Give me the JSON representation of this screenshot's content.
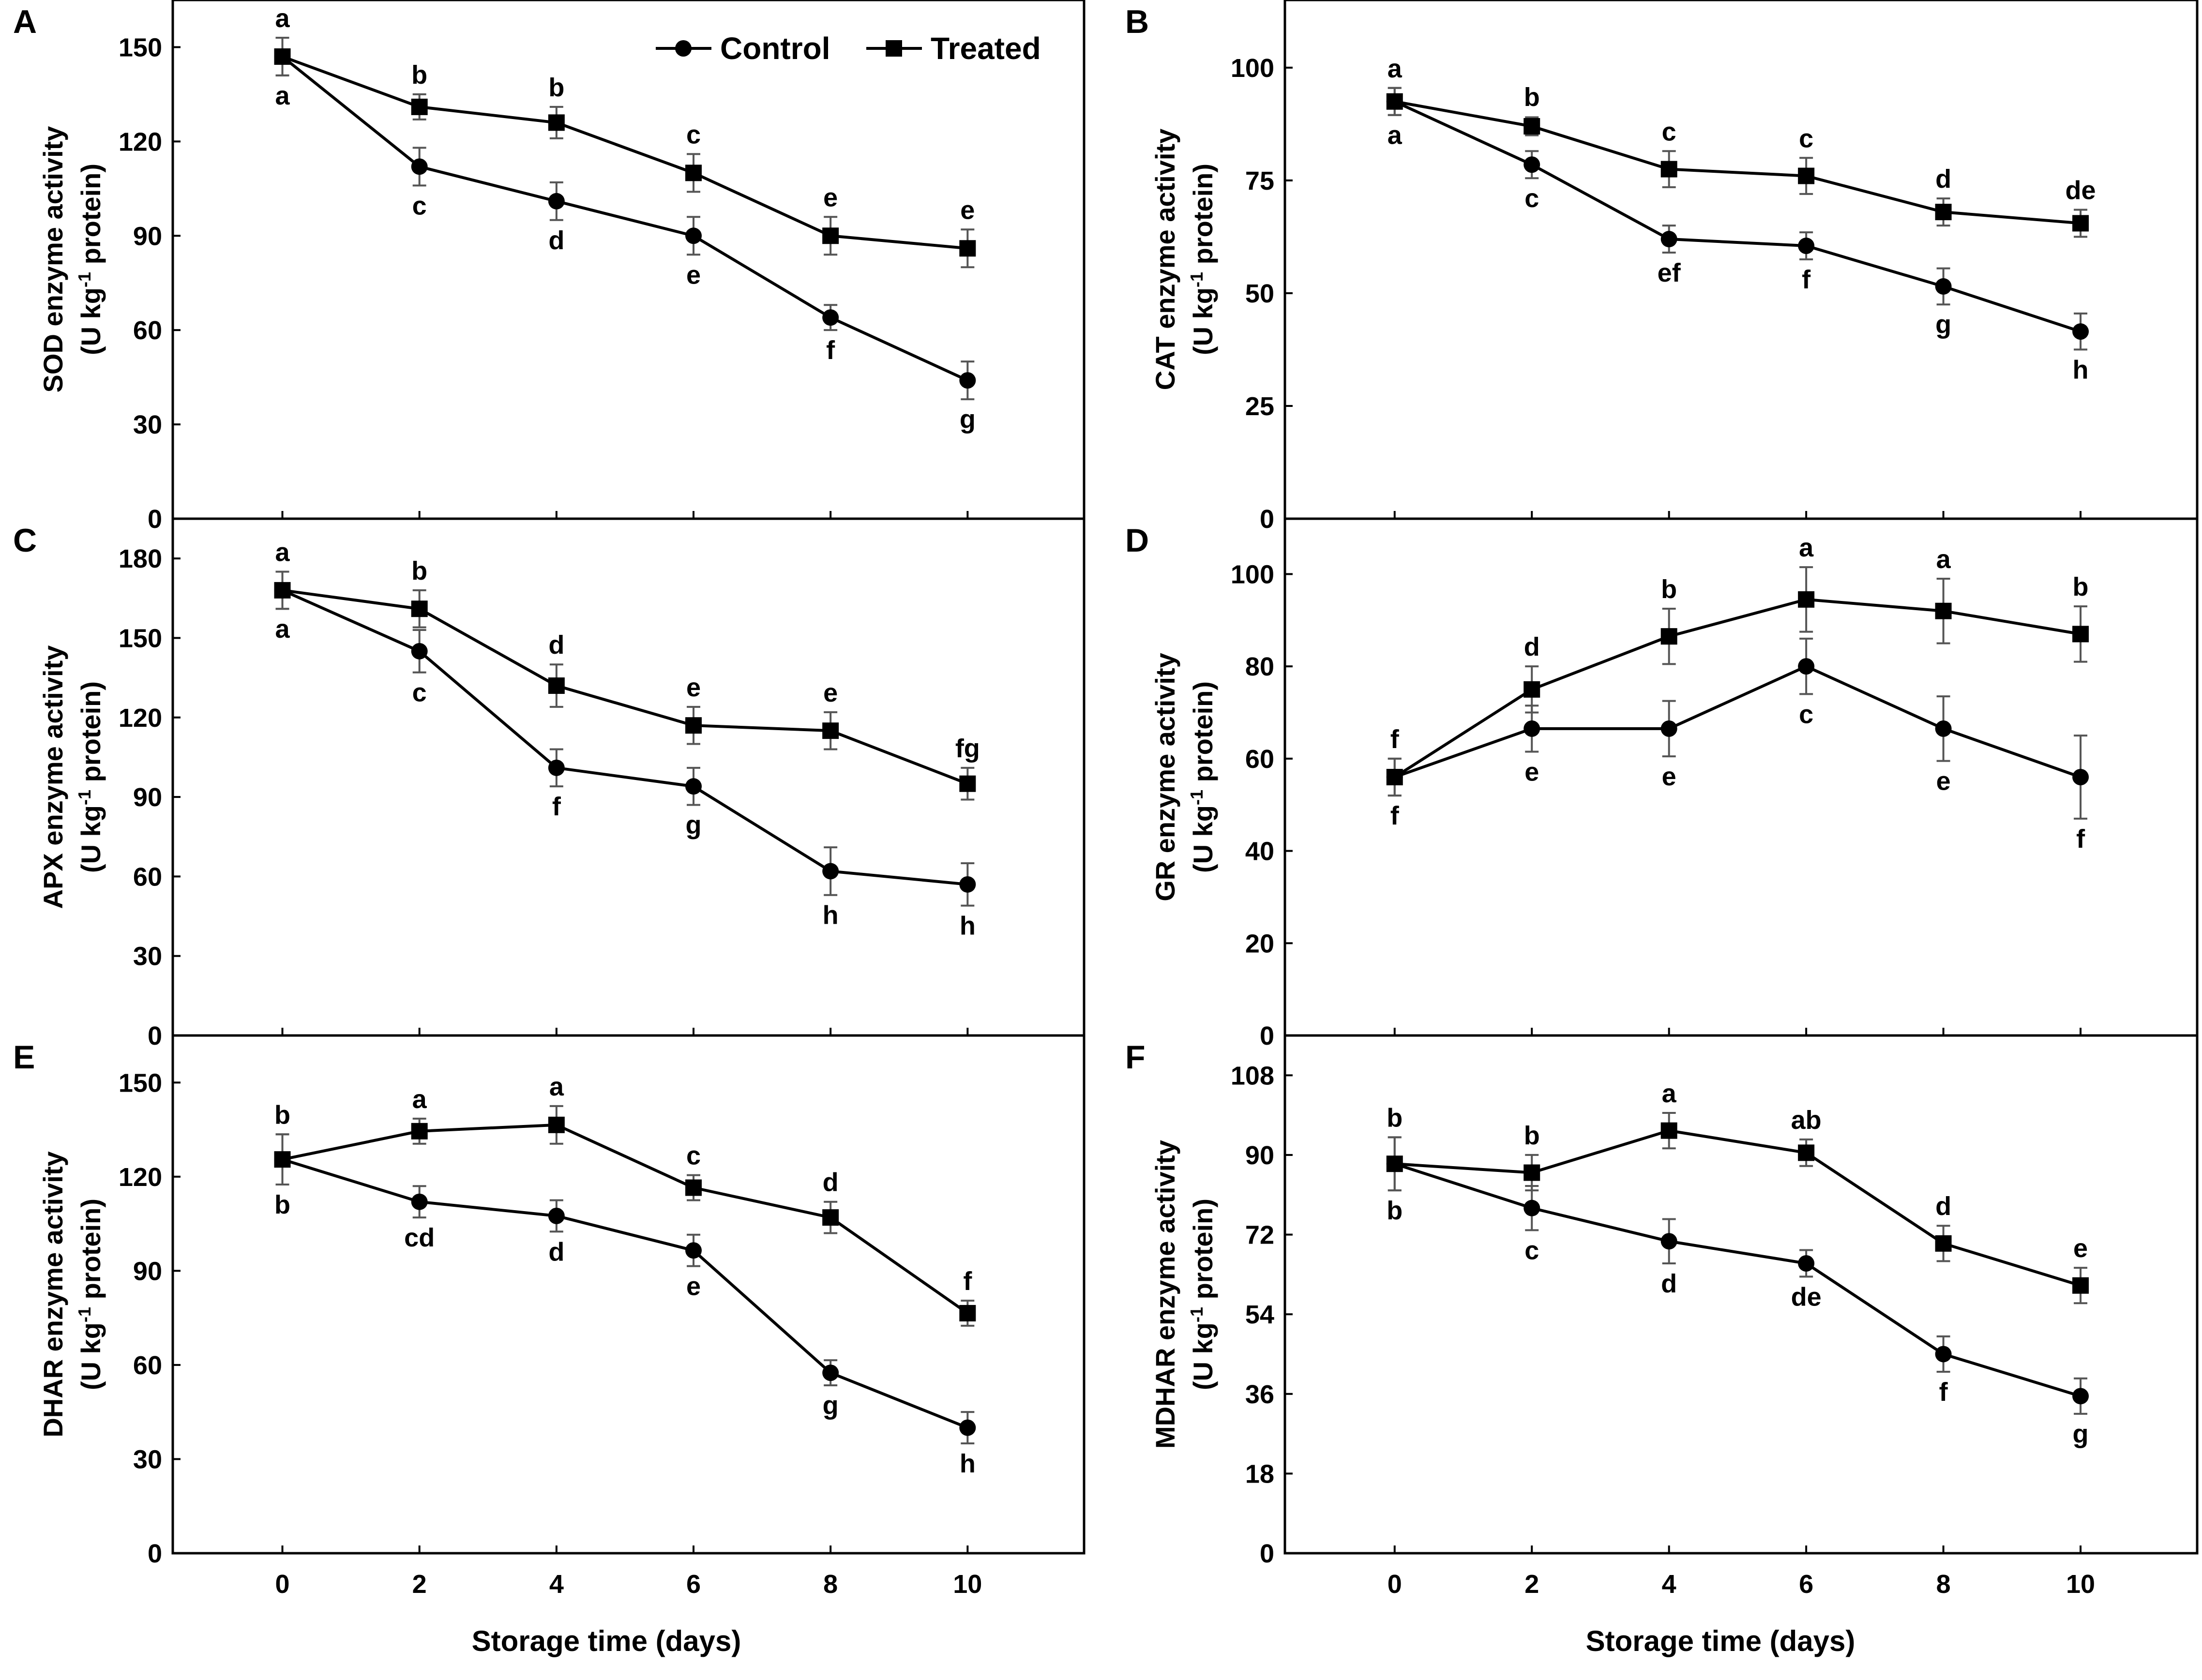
{
  "figure": {
    "x_axis_title": "Storage time (days)",
    "legend": [
      {
        "label": "Control",
        "marker": "circle"
      },
      {
        "label": "Treated",
        "marker": "square"
      }
    ]
  },
  "chart_data": [
    {
      "panel": "A",
      "type": "line",
      "ylabel_line1": "SOD enzyme activity",
      "ylabel_line2_pre": "(U kg",
      "ylabel_sup": "-1",
      "ylabel_line2_post": " protein)",
      "ylim": [
        0,
        165
      ],
      "yticks": [
        0,
        30,
        60,
        90,
        120,
        150
      ],
      "x": [
        0,
        2,
        4,
        6,
        8,
        10
      ],
      "xticks": [
        0,
        2,
        4,
        6,
        8,
        10
      ],
      "series": [
        {
          "name": "Control",
          "values": [
            147,
            112,
            101,
            90,
            64,
            44
          ],
          "errors": [
            6,
            6,
            6,
            6,
            4,
            6
          ],
          "letters": [
            "a",
            "c",
            "d",
            "e",
            "f",
            "g"
          ],
          "label_pos": "below"
        },
        {
          "name": "Treated",
          "values": [
            147,
            131,
            126,
            110,
            90,
            86
          ],
          "errors": [
            6,
            4,
            5,
            6,
            6,
            6
          ],
          "letters": [
            "a",
            "b",
            "b",
            "c",
            "e",
            "e"
          ],
          "label_pos": "above"
        }
      ]
    },
    {
      "panel": "B",
      "type": "line",
      "ylabel_line1": "CAT enzyme activity",
      "ylabel_line2_pre": "(U kg",
      "ylabel_sup": "-1",
      "ylabel_line2_post": " protein)",
      "ylim": [
        0,
        115
      ],
      "yticks": [
        0,
        25,
        50,
        75,
        100
      ],
      "x": [
        0,
        2,
        4,
        6,
        8,
        10
      ],
      "xticks": [
        0,
        2,
        4,
        6,
        8,
        10
      ],
      "series": [
        {
          "name": "Control",
          "values": [
            92.5,
            78.5,
            62,
            60.5,
            51.5,
            41.5
          ],
          "errors": [
            3,
            3,
            3,
            3,
            4,
            4
          ],
          "letters": [
            "a",
            "c",
            "ef",
            "f",
            "g",
            "h"
          ],
          "label_pos": "below"
        },
        {
          "name": "Treated",
          "values": [
            92.5,
            87,
            77.5,
            76,
            68,
            65.5
          ],
          "errors": [
            3,
            2,
            4,
            4,
            3,
            3
          ],
          "letters": [
            "a",
            "b",
            "c",
            "c",
            "d",
            "de"
          ],
          "label_pos": "above"
        }
      ]
    },
    {
      "panel": "C",
      "type": "line",
      "ylabel_line1": "APX enzyme activity",
      "ylabel_line2_pre": "(U kg",
      "ylabel_sup": "-1",
      "ylabel_line2_post": " protein)",
      "ylim": [
        0,
        195
      ],
      "yticks": [
        0,
        30,
        60,
        90,
        120,
        150,
        180
      ],
      "x": [
        0,
        2,
        4,
        6,
        8,
        10
      ],
      "xticks": [
        0,
        2,
        4,
        6,
        8,
        10
      ],
      "series": [
        {
          "name": "Control",
          "values": [
            168,
            145,
            101,
            94,
            62,
            57
          ],
          "errors": [
            7,
            8,
            7,
            7,
            9,
            8
          ],
          "letters": [
            "a",
            "c",
            "f",
            "g",
            "h",
            "h"
          ],
          "label_pos": "below"
        },
        {
          "name": "Treated",
          "values": [
            168,
            161,
            132,
            117,
            115,
            95
          ],
          "errors": [
            7,
            7,
            8,
            7,
            7,
            6
          ],
          "letters": [
            "a",
            "b",
            "d",
            "e",
            "e",
            "fg"
          ],
          "label_pos": "above"
        }
      ]
    },
    {
      "panel": "D",
      "type": "line",
      "ylabel_line1": "GR enzyme activity",
      "ylabel_line2_pre": "(U kg",
      "ylabel_sup": "-1",
      "ylabel_line2_post": " protein)",
      "ylim": [
        0,
        112
      ],
      "yticks": [
        0,
        20,
        40,
        60,
        80,
        100
      ],
      "x": [
        0,
        2,
        4,
        6,
        8,
        10
      ],
      "xticks": [
        0,
        2,
        4,
        6,
        8,
        10
      ],
      "series": [
        {
          "name": "Control",
          "values": [
            56,
            66.5,
            66.5,
            80,
            66.5,
            56
          ],
          "errors": [
            4,
            5,
            6,
            6,
            7,
            9
          ],
          "letters": [
            "f",
            "e",
            "e",
            "c",
            "e",
            "f"
          ],
          "label_pos": "below"
        },
        {
          "name": "Treated",
          "values": [
            56,
            75,
            86.5,
            94.5,
            92,
            87
          ],
          "errors": [
            4,
            5,
            6,
            7,
            7,
            6
          ],
          "letters": [
            "f",
            "d",
            "b",
            "a",
            "a",
            "b"
          ],
          "label_pos": "above"
        }
      ]
    },
    {
      "panel": "E",
      "type": "line",
      "ylabel_line1": "DHAR enzyme activity",
      "ylabel_line2_pre": "(U kg",
      "ylabel_sup": "-1",
      "ylabel_line2_post": " protein)",
      "ylim": [
        0,
        165
      ],
      "yticks": [
        0,
        30,
        60,
        90,
        120,
        150
      ],
      "x": [
        0,
        2,
        4,
        6,
        8,
        10
      ],
      "xticks": [
        0,
        2,
        4,
        6,
        8,
        10
      ],
      "series": [
        {
          "name": "Control",
          "values": [
            125.5,
            112,
            107.5,
            96.5,
            57.5,
            40
          ],
          "errors": [
            8,
            5,
            5,
            5,
            4,
            5
          ],
          "letters": [
            "b",
            "cd",
            "d",
            "e",
            "g",
            "h"
          ],
          "label_pos": "below"
        },
        {
          "name": "Treated",
          "values": [
            125.5,
            134.5,
            136.5,
            116.5,
            107,
            76.5
          ],
          "errors": [
            8,
            4,
            6,
            4,
            5,
            4
          ],
          "letters": [
            "b",
            "a",
            "a",
            "c",
            "d",
            "f"
          ],
          "label_pos": "above"
        }
      ]
    },
    {
      "panel": "F",
      "type": "line",
      "ylabel_line1": "MDHAR enzyme activity",
      "ylabel_line2_pre": "(U kg",
      "ylabel_sup": "-1",
      "ylabel_line2_post": " protein)",
      "ylim": [
        0,
        117
      ],
      "yticks": [
        0,
        18,
        36,
        54,
        72,
        90,
        108
      ],
      "x": [
        0,
        2,
        4,
        6,
        8,
        10
      ],
      "xticks": [
        0,
        2,
        4,
        6,
        8,
        10
      ],
      "series": [
        {
          "name": "Control",
          "values": [
            88,
            78,
            70.5,
            65.5,
            45,
            35.5
          ],
          "errors": [
            6,
            5,
            5,
            3,
            4,
            4
          ],
          "letters": [
            "b",
            "c",
            "d",
            "de",
            "f",
            "g"
          ],
          "label_pos": "below"
        },
        {
          "name": "Treated",
          "values": [
            88,
            86,
            95.5,
            90.5,
            70,
            60.5
          ],
          "errors": [
            6,
            4,
            4,
            3,
            4,
            4
          ],
          "letters": [
            "b",
            "b",
            "a",
            "ab",
            "d",
            "e"
          ],
          "label_pos": "above"
        }
      ]
    }
  ]
}
